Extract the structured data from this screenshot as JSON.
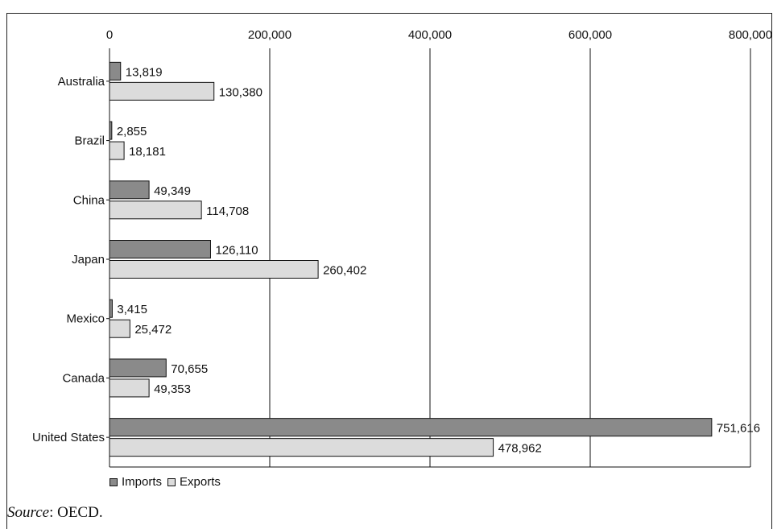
{
  "chart_data": {
    "type": "bar",
    "orientation": "horizontal",
    "categories": [
      "Australia",
      "Brazil",
      "China",
      "Japan",
      "Mexico",
      "Canada",
      "United States"
    ],
    "series": [
      {
        "name": "Imports",
        "values": [
          13819,
          2855,
          49349,
          126110,
          3415,
          70655,
          751616
        ]
      },
      {
        "name": "Exports",
        "values": [
          130380,
          18181,
          114708,
          260402,
          25472,
          49353,
          478962
        ]
      }
    ],
    "value_labels": {
      "Imports": [
        "13,819",
        "2,855",
        "49,349",
        "126,110",
        "3,415",
        "70,655",
        "751,616"
      ],
      "Exports": [
        "130,380",
        "18,181",
        "114,708",
        "260,402",
        "25,472",
        "49,353",
        "478,962"
      ]
    },
    "xaxis_ticks": [
      "0",
      "200,000",
      "400,000",
      "600,000",
      "800,000"
    ],
    "xlim": [
      0,
      800000
    ],
    "xaxis_position": "top",
    "grid": true,
    "legend_position": "bottom-left",
    "colors": {
      "Imports": "#8a8a8a",
      "Exports": "#dcdcdc"
    }
  },
  "source": {
    "label": "Source",
    "text": ": OECD."
  }
}
